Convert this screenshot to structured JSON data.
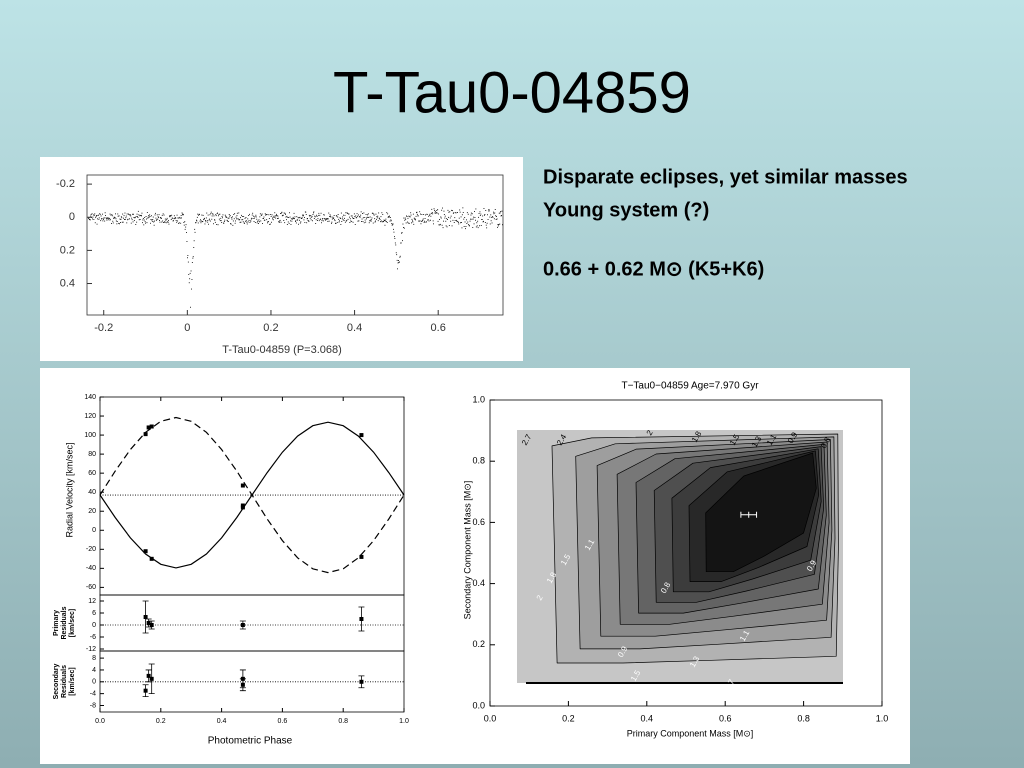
{
  "title": "T-Tau0-04859",
  "notes": [
    "Disparate eclipses, yet similar masses",
    "Young system (?)",
    "0.66 + 0.62 M⊙    (K5+K6)"
  ],
  "light_curve": {
    "caption": "T-Tau0-04859   (P=3.068)",
    "xlim": [
      -0.24,
      0.755
    ],
    "ylim": [
      -0.255,
      0.59
    ],
    "xticks": [
      -0.2,
      0,
      0.2,
      0.4,
      0.6
    ],
    "yticks": [
      -0.2,
      0,
      0.2,
      0.4
    ]
  },
  "rv": {
    "ylabel": "Radial Velocity  [km/sec]",
    "xlabel": "Photometric Phase",
    "xlim": [
      0,
      1
    ],
    "ylim": [
      -68,
      140
    ],
    "yticks": [
      140,
      120,
      100,
      80,
      60,
      40,
      20,
      0,
      -20,
      -40,
      -60
    ],
    "xticks": [
      {
        "value": 0,
        "label": "0.0"
      },
      0.2,
      0.4,
      0.6,
      0.8,
      {
        "value": 1,
        "label": "1.0"
      }
    ],
    "systemic": 37,
    "model_phase": [
      0,
      0.05,
      0.1,
      0.15,
      0.2,
      0.25,
      0.3,
      0.35,
      0.4,
      0.45,
      0.5,
      0.55,
      0.6,
      0.65,
      0.7,
      0.75,
      0.8,
      0.85,
      0.9,
      0.95,
      1
    ],
    "model_solid": [
      37,
      13.4,
      -8,
      -24.9,
      -35.8,
      -39.5,
      -35.8,
      -24.9,
      -8,
      13.4,
      37,
      60.6,
      82,
      98.9,
      109.8,
      113.5,
      109.8,
      98.9,
      82,
      60.6,
      37
    ],
    "model_dashed": [
      37,
      62.2,
      84.9,
      102.9,
      114.5,
      118.5,
      114.5,
      102.9,
      84.9,
      62.2,
      37,
      11.8,
      -10.9,
      -28.9,
      -40.5,
      -44.5,
      -40.5,
      -28.9,
      -10.9,
      11.8,
      37
    ],
    "points": {
      "x": [
        0.15,
        0.16,
        0.17,
        0.47,
        0.47,
        0.86,
        0.15,
        0.17,
        0.86,
        0.47
      ],
      "y": [
        101,
        108,
        109,
        47,
        24,
        100,
        -22,
        -30,
        -28,
        26
      ]
    },
    "primary_residuals": {
      "label": [
        "Primary",
        "Residuals",
        "[km/sec]"
      ],
      "ylim": [
        -13,
        15
      ],
      "yticks": [
        12,
        6,
        0,
        -6,
        -12
      ],
      "x": [
        0.15,
        0.16,
        0.17,
        0.47,
        0.86
      ],
      "y": [
        4,
        1,
        0,
        0,
        3
      ],
      "err": [
        8,
        2,
        2,
        2,
        6
      ]
    },
    "secondary_residuals": {
      "label": [
        "Secondary",
        "Residuals",
        "[km/sec]"
      ],
      "ylim": [
        -10.2,
        10.4
      ],
      "yticks": [
        8,
        4,
        0,
        -4,
        -8
      ],
      "x": [
        0.15,
        0.16,
        0.17,
        0.47,
        0.47,
        0.86
      ],
      "y": [
        -3,
        2,
        1,
        1,
        -1,
        0
      ],
      "err": [
        2,
        2,
        5,
        3,
        2,
        2
      ]
    }
  },
  "mass_plot": {
    "title": "T−Tau0−04859      Age=7.970 Gyr",
    "xlabel": "Primary Component Mass  [M⊙]",
    "ylabel": "Secondary Component Mass  [M⊙]",
    "xlim": [
      0,
      1
    ],
    "ylim": [
      0,
      1
    ],
    "xticks": [
      {
        "value": 0,
        "label": "0.0"
      },
      0.2,
      0.4,
      0.6,
      0.8,
      {
        "value": 1,
        "label": "1.0"
      }
    ],
    "yticks": [
      {
        "value": 0,
        "label": "0.0"
      },
      0.2,
      0.4,
      0.6,
      0.8,
      {
        "value": 1,
        "label": "1.0"
      }
    ],
    "contour_labels": [
      2.7,
      2.4,
      2,
      1.8,
      1.5,
      1.3,
      1.1,
      0.9,
      0.8,
      0.9,
      1.1,
      1.3,
      1.5,
      2.7,
      2,
      1.8,
      1.5,
      1.1,
      0.9,
      0.8
    ],
    "best_fit": {
      "x": 0.66,
      "y": 0.625,
      "xerr": 0.02,
      "yerr": 0.01
    }
  }
}
